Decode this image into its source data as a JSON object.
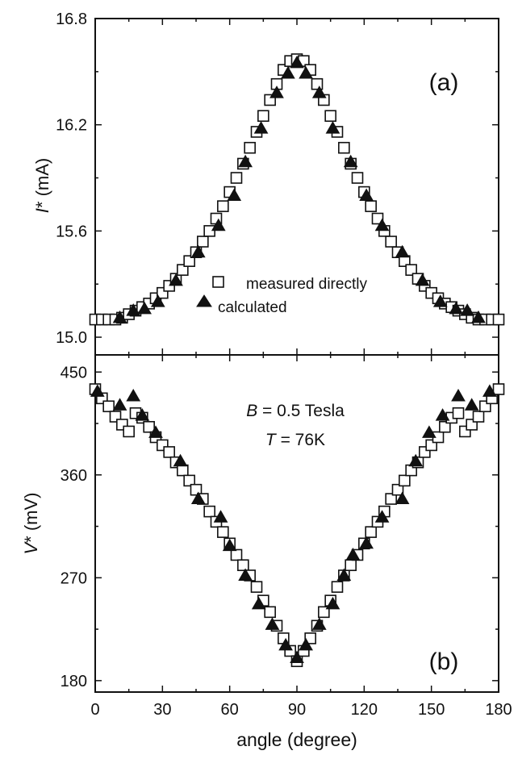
{
  "chart_data": [
    {
      "type": "scatter",
      "panel_label": "(a)",
      "ylabel": "I* (mA)",
      "ylabel_parts": {
        "symbol": "I",
        "rest": "* (mA)"
      },
      "xlim": [
        0,
        180
      ],
      "ylim": [
        14.9,
        16.8
      ],
      "y_tick_labels": [
        "15.0",
        "15.6",
        "16.2",
        "16.8"
      ],
      "legend": {
        "placement": "center-bottom",
        "entries": [
          {
            "series": "measured",
            "label": "measured directly",
            "marker": "open-square"
          },
          {
            "series": "calculated",
            "label": "calculated",
            "marker": "filled-triangle"
          }
        ]
      },
      "series": [
        {
          "name": "measured directly",
          "marker": "open-square",
          "x": [
            0,
            3,
            6,
            9,
            12,
            15,
            18,
            21,
            24,
            27,
            30,
            33,
            36,
            39,
            42,
            45,
            48,
            51,
            54,
            57,
            60,
            63,
            66,
            69,
            72,
            75,
            78,
            81,
            84,
            87,
            90,
            93,
            96,
            99,
            102,
            105,
            108,
            111,
            114,
            117,
            120,
            123,
            126,
            129,
            132,
            135,
            138,
            141,
            144,
            147,
            150,
            153,
            156,
            159,
            162,
            165,
            168,
            171,
            174,
            177,
            180
          ],
          "y": [
            15.1,
            15.1,
            15.1,
            15.1,
            15.11,
            15.13,
            15.15,
            15.17,
            15.19,
            15.22,
            15.25,
            15.29,
            15.33,
            15.38,
            15.43,
            15.48,
            15.54,
            15.6,
            15.67,
            15.74,
            15.82,
            15.9,
            15.98,
            16.07,
            16.16,
            16.25,
            16.34,
            16.43,
            16.51,
            16.56,
            16.57,
            16.56,
            16.51,
            16.43,
            16.34,
            16.25,
            16.16,
            16.07,
            15.98,
            15.9,
            15.82,
            15.74,
            15.67,
            15.6,
            15.54,
            15.48,
            15.43,
            15.38,
            15.33,
            15.29,
            15.25,
            15.22,
            15.19,
            15.17,
            15.15,
            15.13,
            15.11,
            15.1,
            15.1,
            15.1,
            15.1
          ]
        },
        {
          "name": "calculated",
          "marker": "filled-triangle",
          "x": [
            11,
            17,
            22,
            28,
            36,
            46,
            55,
            62,
            67,
            74,
            81,
            86,
            90,
            94,
            100,
            106,
            114,
            121,
            128,
            137,
            146,
            154,
            161,
            166,
            171
          ],
          "y": [
            15.11,
            15.15,
            15.16,
            15.2,
            15.32,
            15.48,
            15.63,
            15.8,
            15.99,
            16.18,
            16.38,
            16.49,
            16.55,
            16.49,
            16.38,
            16.18,
            15.99,
            15.8,
            15.63,
            15.48,
            15.32,
            15.2,
            15.16,
            15.15,
            15.11
          ]
        }
      ]
    },
    {
      "type": "scatter",
      "panel_label": "(b)",
      "annotation": {
        "field": {
          "symbol": "B",
          "rest": " = 0.5 Tesla"
        },
        "temperature": {
          "symbol": "T",
          "rest": " = 76K"
        }
      },
      "ylabel": "V* (mV)",
      "ylabel_parts": {
        "symbol": "V",
        "rest": "* (mV)"
      },
      "xlabel": "angle (degree)",
      "xlim": [
        0,
        180
      ],
      "ylim": [
        170,
        465
      ],
      "x_tick_labels": [
        "0",
        "30",
        "60",
        "90",
        "120",
        "150",
        "180"
      ],
      "y_tick_labels": [
        "180",
        "270",
        "360",
        "450"
      ],
      "series": [
        {
          "name": "measured directly",
          "marker": "open-square",
          "x": [
            0,
            3,
            6,
            9,
            12,
            15,
            18,
            21,
            24,
            27,
            30,
            33,
            36,
            39,
            42,
            45,
            48,
            51,
            54,
            57,
            60,
            63,
            66,
            69,
            72,
            75,
            78,
            81,
            84,
            87,
            90,
            93,
            96,
            99,
            102,
            105,
            108,
            111,
            114,
            117,
            120,
            123,
            126,
            129,
            132,
            135,
            138,
            141,
            144,
            147,
            150,
            153,
            156,
            159,
            162,
            165,
            168,
            171,
            174,
            177,
            180
          ],
          "y": [
            435,
            427,
            420,
            411,
            404,
            398,
            414,
            410,
            402,
            393,
            386,
            380,
            371,
            364,
            355,
            347,
            339,
            328,
            319,
            310,
            300,
            290,
            281,
            272,
            262,
            250,
            240,
            228,
            217,
            206,
            197,
            206,
            217,
            228,
            240,
            250,
            262,
            272,
            281,
            290,
            300,
            310,
            319,
            328,
            339,
            347,
            355,
            364,
            371,
            380,
            386,
            393,
            402,
            410,
            414,
            398,
            404,
            411,
            420,
            427,
            435
          ]
        },
        {
          "name": "calculated",
          "marker": "filled-triangle",
          "x": [
            1,
            11,
            17,
            21,
            27,
            38,
            46,
            56,
            60,
            67,
            73,
            79,
            85,
            90,
            94,
            100,
            106,
            111,
            115,
            121,
            128,
            137,
            143,
            149,
            155,
            162,
            168,
            176
          ],
          "y": [
            433,
            421,
            429,
            412,
            397,
            372,
            339,
            323,
            298,
            272,
            247,
            229,
            211,
            200,
            211,
            229,
            247,
            272,
            290,
            300,
            323,
            339,
            372,
            397,
            412,
            429,
            421,
            433
          ]
        }
      ]
    }
  ]
}
